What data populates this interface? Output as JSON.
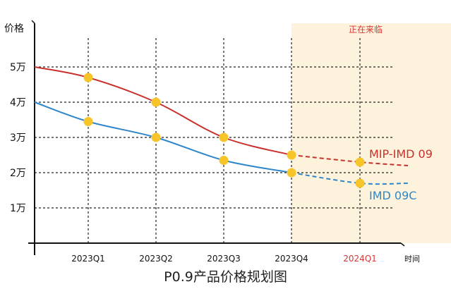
{
  "chart_data": {
    "type": "line",
    "title": "P0.9产品价格规划图",
    "ylabel": "价格",
    "xlabel": "时间",
    "categories": [
      "2023Q1",
      "2023Q2",
      "2023Q3",
      "2023Q4",
      "2024Q1"
    ],
    "y_ticks": [
      "1万",
      "2万",
      "3万",
      "4万",
      "5万"
    ],
    "ylim": [
      0,
      6
    ],
    "grid": "dashed",
    "highlight": {
      "from_category": "2023Q4",
      "label": "正在来临",
      "color": "#fdf3dc"
    },
    "highlight_tick_color": "#d93636",
    "series": [
      {
        "name": "MIP-IMD 09",
        "color": "#c8302b",
        "x": [
          "2023Q1",
          "2023Q2",
          "2023Q3",
          "2023Q4",
          "2024Q1"
        ],
        "values": [
          4.7,
          4.0,
          3.0,
          2.5,
          2.3
        ],
        "start_value": 5.0,
        "end_value": 2.2,
        "forecast_from": "2023Q4"
      },
      {
        "name": "IMD 09C",
        "color": "#2e86c9",
        "x": [
          "2023Q1",
          "2023Q2",
          "2023Q3",
          "2023Q4",
          "2024Q1"
        ],
        "values": [
          3.45,
          3.0,
          2.35,
          2.0,
          1.7
        ],
        "start_value": 4.0,
        "end_value": 1.7,
        "forecast_from": "2023Q4"
      }
    ],
    "marker_color": "#f7c52a"
  }
}
